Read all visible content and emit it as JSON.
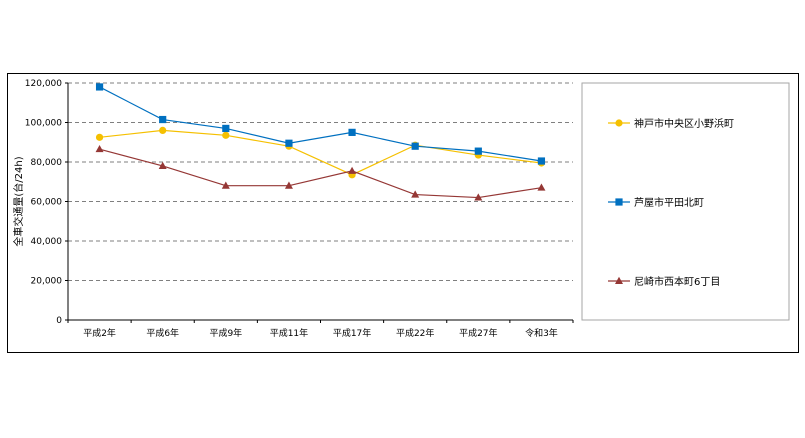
{
  "chart_data": {
    "type": "line",
    "title": "",
    "xlabel": "",
    "ylabel": "全車交通量(台/24h)",
    "ylim": [
      0,
      120000
    ],
    "yticks": [
      "0",
      "20,000",
      "40,000",
      "60,000",
      "80,000",
      "100,000",
      "120,000"
    ],
    "grid": "horizontal dashed",
    "legend": "right",
    "categories": [
      "平成2年",
      "平成6年",
      "平成9年",
      "平成11年",
      "平成17年",
      "平成22年",
      "平成27年",
      "令和3年"
    ],
    "series": [
      {
        "name": "神戸市中央区小野浜町",
        "color": "#f5c000",
        "marker": "circle",
        "values": [
          92500,
          96000,
          93500,
          88000,
          73500,
          88500,
          83500,
          79500
        ]
      },
      {
        "name": "芦屋市平田北町",
        "color": "#0070c0",
        "marker": "square",
        "values": [
          118000,
          101500,
          97000,
          89500,
          95000,
          88000,
          85500,
          80500
        ]
      },
      {
        "name": "尼崎市西本町6丁目",
        "color": "#953735",
        "marker": "triangle",
        "values": [
          86500,
          78000,
          68000,
          68000,
          75500,
          63500,
          62000,
          67000
        ]
      }
    ]
  }
}
